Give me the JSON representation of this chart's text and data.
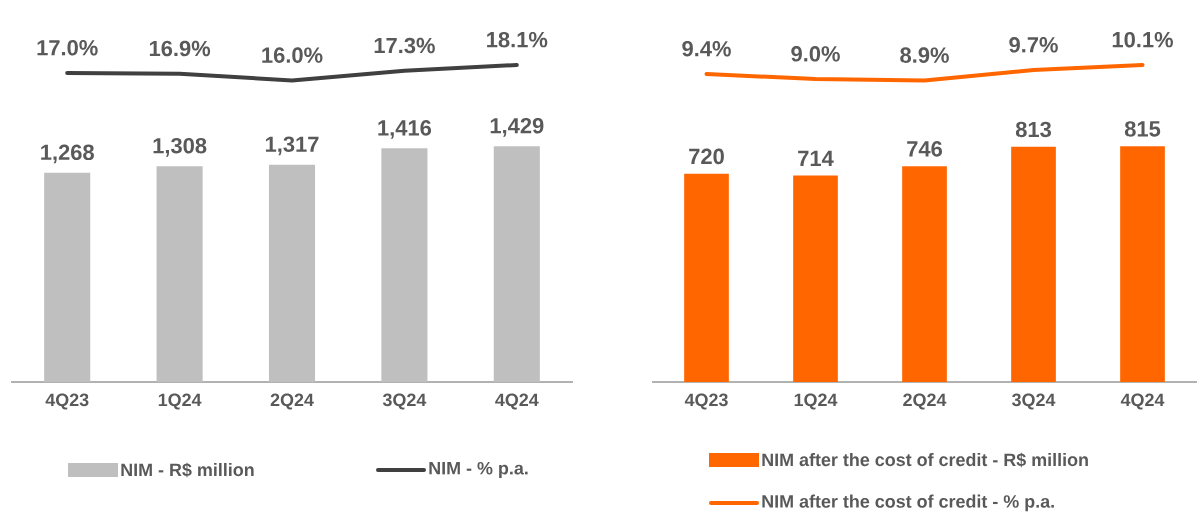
{
  "chart_data": [
    {
      "type": "bar",
      "categories": [
        "4Q23",
        "1Q24",
        "2Q24",
        "3Q24",
        "4Q24"
      ],
      "legend": "bottom",
      "tick_labels": "x",
      "series": [
        {
          "name": "NIM - R$ million",
          "color": "#bfbfbf",
          "values": [
            1268,
            1308,
            1317,
            1416,
            1429
          ],
          "value_labels": [
            "1,268",
            "1,308",
            "1,317",
            "1,416",
            "1,429"
          ]
        }
      ]
    },
    {
      "type": "line",
      "categories": [
        null,
        null,
        null,
        null,
        null
      ],
      "legend": "bottom",
      "marker": "none",
      "line_style": "solid",
      "tick_labels": false,
      "series": [
        {
          "name": "NIM - % p.a.",
          "color": "#404040",
          "values": [
            17.0,
            16.9,
            16.0,
            17.3,
            18.1
          ],
          "value_labels": [
            "17.0%",
            "16.9%",
            "16.0%",
            "17.3%",
            "18.1%"
          ]
        }
      ]
    },
    {
      "type": "bar",
      "categories": [
        "4Q23",
        "1Q24",
        "2Q24",
        "3Q24",
        "4Q24"
      ],
      "legend": "bottom",
      "tick_labels": "x",
      "series": [
        {
          "name": "NIM after the cost of credit - R$ million",
          "color": "#ff6600",
          "values": [
            720,
            714,
            746,
            813,
            815
          ],
          "value_labels": [
            "720",
            "714",
            "746",
            "813",
            "815"
          ]
        }
      ]
    },
    {
      "type": "line",
      "categories": [
        null,
        null,
        null,
        null,
        null
      ],
      "legend": "bottom",
      "marker": "none",
      "line_style": "solid",
      "tick_labels": false,
      "series": [
        {
          "name": "NIM after the cost of credit  - % p.a.",
          "color": "#ff6600",
          "values": [
            9.4,
            9.0,
            8.9,
            9.7,
            10.1
          ],
          "value_labels": [
            "9.4%",
            "9.0%",
            "8.9%",
            "9.7%",
            "10.1%"
          ]
        }
      ]
    }
  ]
}
